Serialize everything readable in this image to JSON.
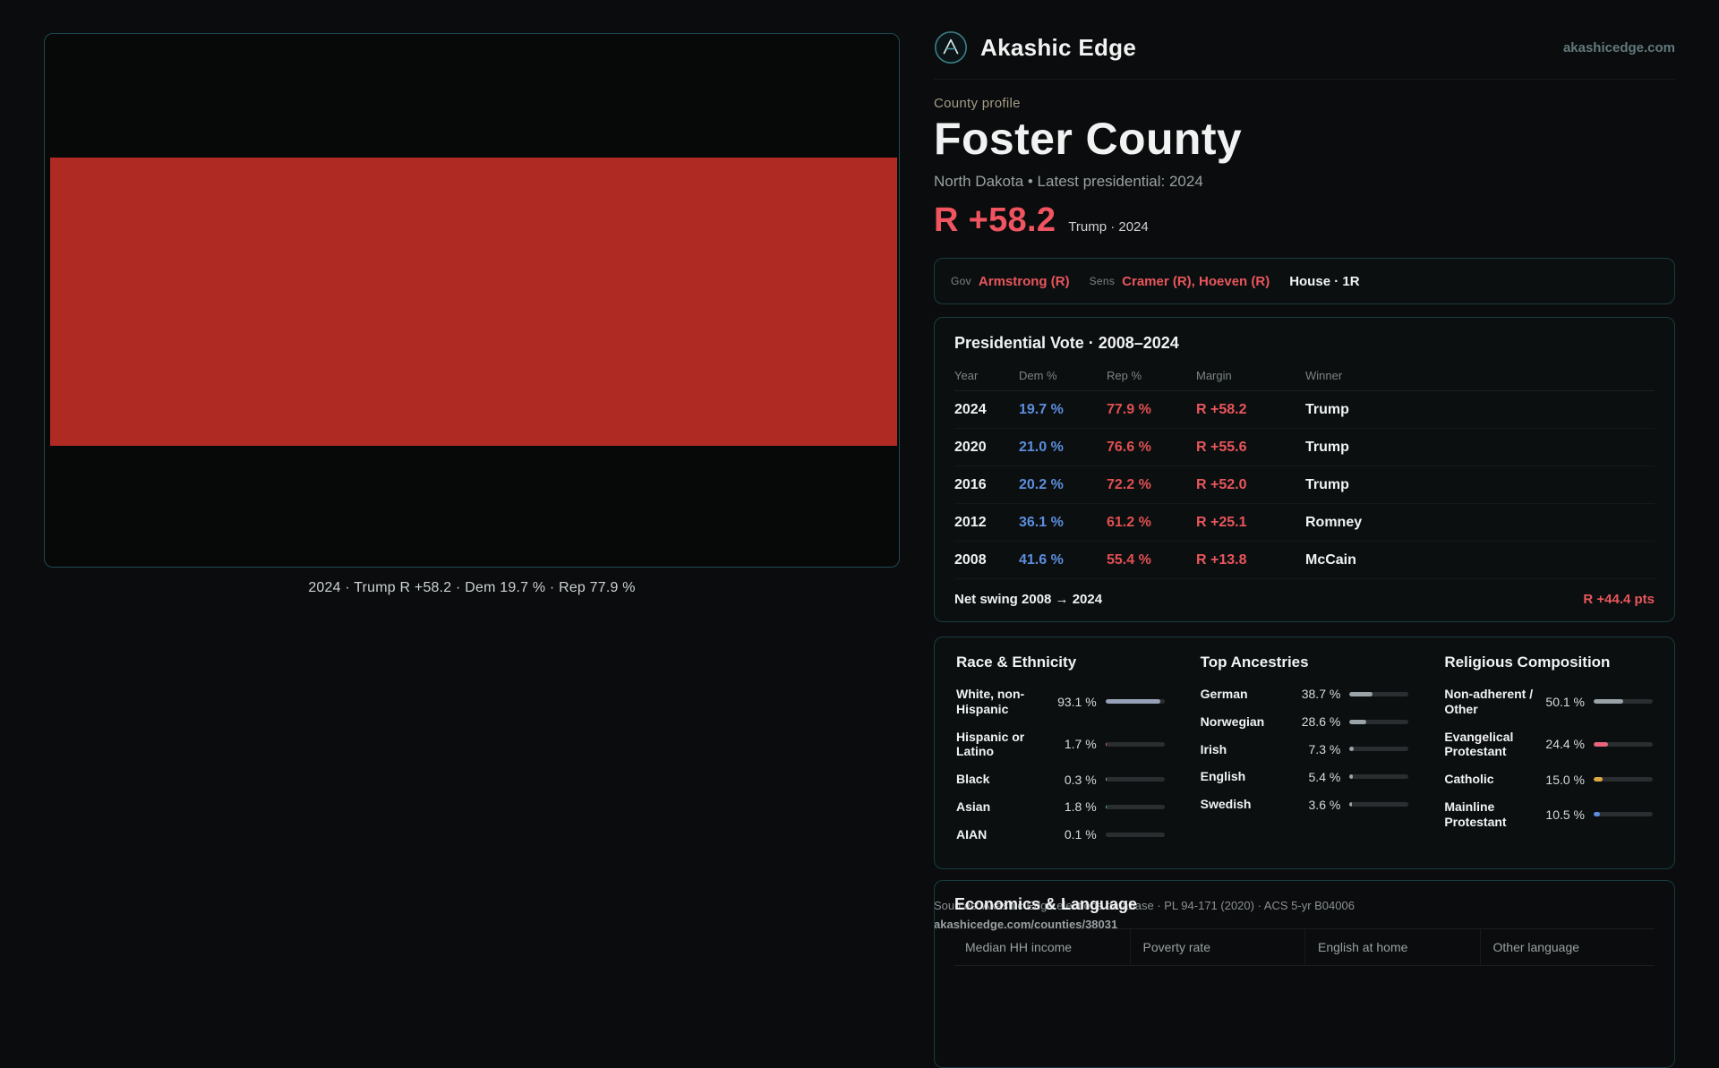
{
  "header": {
    "brand": "Akashic Edge",
    "domain": "akashicedge.com"
  },
  "profile": {
    "eyebrow": "County profile",
    "title": "Foster County",
    "subtitle": "North Dakota • Latest presidential: 2024",
    "margin": "R +58.2",
    "margin_context": "Trump · 2024"
  },
  "colors": {
    "republican": "#e8565c",
    "democrat": "#5b8ede",
    "headline_margin": "#f05460"
  },
  "map": {
    "caption": "2024 · Trump R +58.2 · Dem 19.7 % · Rep 77.9 %",
    "fill_color": "#b02a24"
  },
  "officials": {
    "gov_label": "Gov",
    "gov_value": "Armstrong (R)",
    "sens_label": "Sens",
    "sens_value": "Cramer (R), Hoeven (R)",
    "house_value": "House · 1R"
  },
  "presidential": {
    "title": "Presidential Vote · 2008–2024",
    "columns": [
      "Year",
      "Dem %",
      "Rep %",
      "Margin",
      "Winner"
    ],
    "rows": [
      {
        "year": "2024",
        "dem": "19.7 %",
        "rep": "77.9 %",
        "margin": "R +58.2",
        "winner": "Trump"
      },
      {
        "year": "2020",
        "dem": "21.0 %",
        "rep": "76.6 %",
        "margin": "R +55.6",
        "winner": "Trump"
      },
      {
        "year": "2016",
        "dem": "20.2 %",
        "rep": "72.2 %",
        "margin": "R +52.0",
        "winner": "Trump"
      },
      {
        "year": "2012",
        "dem": "36.1 %",
        "rep": "61.2 %",
        "margin": "R +25.1",
        "winner": "Romney"
      },
      {
        "year": "2008",
        "dem": "41.6 %",
        "rep": "55.4 %",
        "margin": "R +13.8",
        "winner": "McCain"
      }
    ],
    "net_swing_label": "Net swing 2008 → 2024",
    "net_swing_value": "R +44.4 pts"
  },
  "demographics": {
    "race": {
      "title": "Race & Ethnicity",
      "rows": [
        {
          "label": "White, non-Hispanic",
          "value": "93.1 %",
          "pct": 93.1,
          "color": "#97a2b8"
        },
        {
          "label": "Hispanic or Latino",
          "value": "1.7 %",
          "pct": 1.7,
          "color": "#e06a78"
        },
        {
          "label": "Black",
          "value": "0.3 %",
          "pct": 0.3,
          "color": "#9aa3a8"
        },
        {
          "label": "Asian",
          "value": "1.8 %",
          "pct": 1.8,
          "color": "#57b97f"
        },
        {
          "label": "AIAN",
          "value": "0.1 %",
          "pct": 0.1,
          "color": "#9aa3a8"
        }
      ]
    },
    "ancestries": {
      "title": "Top Ancestries",
      "rows": [
        {
          "label": "German",
          "value": "38.7 %",
          "pct": 38.7,
          "color": "#9aa3a8"
        },
        {
          "label": "Norwegian",
          "value": "28.6 %",
          "pct": 28.6,
          "color": "#9aa3a8"
        },
        {
          "label": "Irish",
          "value": "7.3 %",
          "pct": 7.3,
          "color": "#9aa3a8"
        },
        {
          "label": "English",
          "value": "5.4 %",
          "pct": 5.4,
          "color": "#9aa3a8"
        },
        {
          "label": "Swedish",
          "value": "3.6 %",
          "pct": 3.6,
          "color": "#9aa3a8"
        }
      ]
    },
    "religion": {
      "title": "Religious Composition",
      "rows": [
        {
          "label": "Non-adherent / Other",
          "value": "50.1 %",
          "pct": 50.1,
          "color": "#9aa3a8"
        },
        {
          "label": "Evangelical Protestant",
          "value": "24.4 %",
          "pct": 24.4,
          "color": "#e8647c"
        },
        {
          "label": "Catholic",
          "value": "15.0 %",
          "pct": 15.0,
          "color": "#dca843"
        },
        {
          "label": "Mainline Protestant",
          "value": "10.5 %",
          "pct": 10.5,
          "color": "#5b8ede"
        }
      ]
    }
  },
  "economics": {
    "title": "Economics & Language",
    "columns": [
      "Median HH income",
      "Poverty rate",
      "English at home",
      "Other language"
    ]
  },
  "footer": {
    "sources": "Sources: Akashic Edge elections database · PL 94-171 (2020) · ACS 5-yr B04006",
    "permalink": "akashicedge.com/counties/38031"
  }
}
